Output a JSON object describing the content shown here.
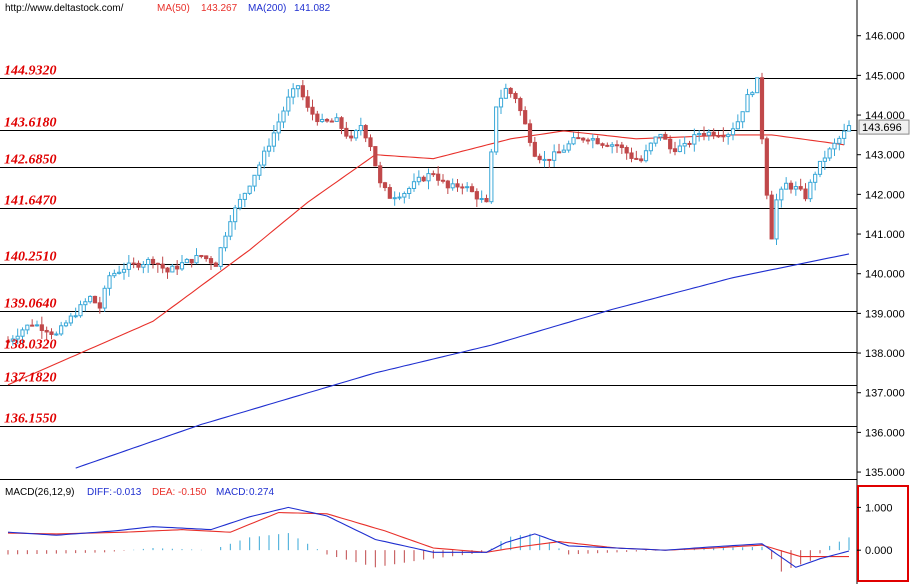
{
  "header": {
    "url": "http://www.deltastock.com/",
    "ma50_label": "MA(50)",
    "ma50_value": "143.267",
    "ma200_label": "MA(200)",
    "ma200_value": "141.082"
  },
  "macd_header": {
    "label": "MACD(26,12,9)",
    "diff_label": "DIFF:",
    "diff_value": "-0.013",
    "dea_label": "DEA:",
    "dea_value": "-0.150",
    "macd_label": "MACD:",
    "macd_value": "0.274"
  },
  "colors": {
    "up": "#3aa8d8",
    "down": "#c0484a",
    "ma50": "#e8302a",
    "ma200": "#1f2fd0",
    "level_text": "#e00000",
    "axis_box": "#e00000",
    "current_box": "#f0f0f0"
  },
  "chart_data": [
    {
      "type": "candlestick",
      "y_axis_ticks": [
        "146.000",
        "145.000",
        "144.000",
        "143.000",
        "142.000",
        "141.000",
        "140.000",
        "139.000",
        "138.000",
        "137.000",
        "136.000",
        "135.000"
      ],
      "ylim": [
        134.85,
        146.9
      ],
      "current_price": "143.696",
      "levels": [
        {
          "label": "144.9320",
          "value": 144.932
        },
        {
          "label": "143.6180",
          "value": 143.618
        },
        {
          "label": "142.6850",
          "value": 142.685
        },
        {
          "label": "141.6470",
          "value": 141.647
        },
        {
          "label": "140.2510",
          "value": 140.251
        },
        {
          "label": "139.0640",
          "value": 139.064
        },
        {
          "label": "138.0320",
          "value": 138.032
        },
        {
          "label": "137.1820",
          "value": 137.182
        },
        {
          "label": "136.1550",
          "value": 136.155
        }
      ],
      "ohlc_anchors": [
        [
          0,
          138.3
        ],
        [
          3,
          138.6
        ],
        [
          5,
          138.75
        ],
        [
          8,
          138.6
        ],
        [
          10,
          138.45
        ],
        [
          12,
          138.75
        ],
        [
          15,
          139.15
        ],
        [
          17,
          139.4
        ],
        [
          19,
          139.15
        ],
        [
          21,
          139.95
        ],
        [
          24,
          140.15
        ],
        [
          27,
          140.25
        ],
        [
          30,
          140.35
        ],
        [
          33,
          140.05
        ],
        [
          36,
          140.25
        ],
        [
          40,
          140.45
        ],
        [
          43,
          140.25
        ],
        [
          46,
          141.4
        ],
        [
          49,
          142.05
        ],
        [
          52,
          142.75
        ],
        [
          55,
          143.55
        ],
        [
          58,
          144.4
        ],
        [
          60,
          144.75
        ],
        [
          62,
          144.15
        ],
        [
          65,
          143.8
        ],
        [
          68,
          143.85
        ],
        [
          71,
          143.35
        ],
        [
          73,
          143.75
        ],
        [
          75,
          143.25
        ],
        [
          77,
          142.25
        ],
        [
          79,
          141.95
        ],
        [
          82,
          142.05
        ],
        [
          85,
          142.35
        ],
        [
          88,
          142.55
        ],
        [
          91,
          142.15
        ],
        [
          94,
          142.25
        ],
        [
          97,
          141.95
        ],
        [
          99,
          141.75
        ],
        [
          101,
          144.25
        ],
        [
          103,
          144.65
        ],
        [
          105,
          144.45
        ],
        [
          107,
          143.75
        ],
        [
          109,
          143.05
        ],
        [
          111,
          142.85
        ],
        [
          114,
          143.05
        ],
        [
          117,
          143.35
        ],
        [
          120,
          143.45
        ],
        [
          123,
          143.3
        ],
        [
          126,
          143.25
        ],
        [
          129,
          142.95
        ],
        [
          131,
          142.85
        ],
        [
          133,
          143.25
        ],
        [
          135,
          143.55
        ],
        [
          137,
          143.15
        ],
        [
          140,
          143.2
        ],
        [
          143,
          143.55
        ],
        [
          146,
          143.55
        ],
        [
          149,
          143.55
        ],
        [
          151,
          143.85
        ],
        [
          153,
          144.45
        ],
        [
          155,
          144.85
        ],
        [
          157,
          142.05
        ],
        [
          158,
          140.95
        ],
        [
          159,
          141.85
        ],
        [
          161,
          142.25
        ],
        [
          163,
          142.15
        ],
        [
          165,
          141.95
        ],
        [
          167,
          142.55
        ],
        [
          169,
          142.95
        ],
        [
          171,
          143.25
        ],
        [
          173,
          143.55
        ],
        [
          174,
          143.7
        ]
      ],
      "ma50": [
        [
          0,
          137.2
        ],
        [
          30,
          138.8
        ],
        [
          50,
          140.6
        ],
        [
          62,
          141.8
        ],
        [
          76,
          143.0
        ],
        [
          88,
          142.9
        ],
        [
          104,
          143.4
        ],
        [
          115,
          143.6
        ],
        [
          130,
          143.4
        ],
        [
          150,
          143.5
        ],
        [
          158,
          143.5
        ],
        [
          173,
          143.25
        ]
      ],
      "ma200": [
        [
          14,
          135.1
        ],
        [
          40,
          136.2
        ],
        [
          76,
          137.5
        ],
        [
          100,
          138.2
        ],
        [
          125,
          139.1
        ],
        [
          150,
          139.9
        ],
        [
          174,
          140.5
        ]
      ]
    },
    {
      "type": "macd",
      "y_axis_ticks": [
        "1.000",
        "0.000"
      ],
      "ylim": [
        -0.65,
        1.5
      ],
      "diff": [
        [
          0,
          0.42
        ],
        [
          10,
          0.35
        ],
        [
          22,
          0.45
        ],
        [
          30,
          0.55
        ],
        [
          42,
          0.48
        ],
        [
          50,
          0.78
        ],
        [
          58,
          1.0
        ],
        [
          66,
          0.8
        ],
        [
          76,
          0.25
        ],
        [
          88,
          -0.05
        ],
        [
          99,
          -0.05
        ],
        [
          103,
          0.18
        ],
        [
          109,
          0.38
        ],
        [
          116,
          0.1
        ],
        [
          126,
          0.05
        ],
        [
          136,
          0.0
        ],
        [
          146,
          0.08
        ],
        [
          156,
          0.15
        ],
        [
          163,
          -0.4
        ],
        [
          168,
          -0.2
        ],
        [
          174,
          -0.02
        ]
      ],
      "dea": [
        [
          0,
          0.4
        ],
        [
          10,
          0.38
        ],
        [
          24,
          0.42
        ],
        [
          36,
          0.48
        ],
        [
          46,
          0.42
        ],
        [
          56,
          0.88
        ],
        [
          66,
          0.85
        ],
        [
          78,
          0.45
        ],
        [
          88,
          0.05
        ],
        [
          99,
          -0.05
        ],
        [
          106,
          0.08
        ],
        [
          114,
          0.2
        ],
        [
          126,
          0.05
        ],
        [
          136,
          0.0
        ],
        [
          146,
          0.05
        ],
        [
          156,
          0.12
        ],
        [
          164,
          -0.15
        ],
        [
          174,
          -0.15
        ]
      ],
      "hist": [
        [
          0,
          -0.1
        ],
        [
          10,
          -0.08
        ],
        [
          20,
          -0.05
        ],
        [
          30,
          0.05
        ],
        [
          42,
          0.0
        ],
        [
          50,
          0.3
        ],
        [
          58,
          0.4
        ],
        [
          66,
          -0.1
        ],
        [
          76,
          -0.4
        ],
        [
          86,
          -0.22
        ],
        [
          99,
          -0.05
        ],
        [
          103,
          0.3
        ],
        [
          109,
          0.4
        ],
        [
          116,
          -0.1
        ],
        [
          126,
          -0.05
        ],
        [
          136,
          0.0
        ],
        [
          146,
          0.05
        ],
        [
          156,
          0.08
        ],
        [
          160,
          -0.5
        ],
        [
          166,
          -0.25
        ],
        [
          170,
          0.1
        ],
        [
          174,
          0.3
        ]
      ]
    }
  ]
}
